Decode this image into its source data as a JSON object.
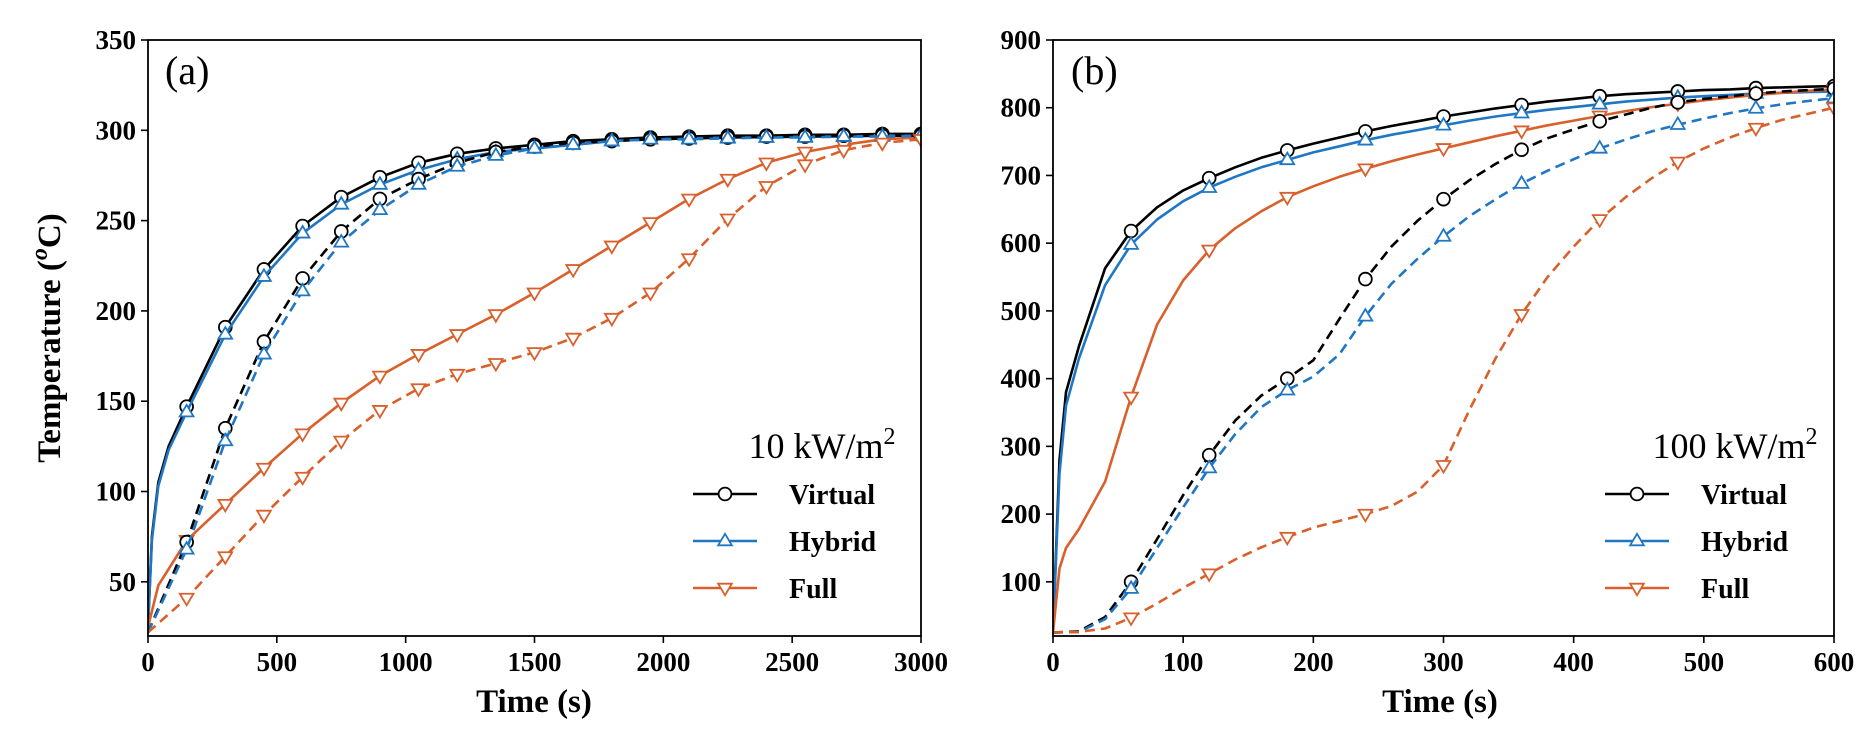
{
  "figure": {
    "ylabel": "Temperature (",
    "ylabel_sup": "o",
    "ylabel_end": "C)"
  },
  "chart_data": [
    {
      "type": "line",
      "panel": "(a)",
      "xlabel": "Time (s)",
      "ylabel": "Temperature (oC)",
      "xlim": [
        0,
        3000
      ],
      "ylim": [
        20,
        350
      ],
      "xticks": [
        0,
        500,
        1000,
        1500,
        2000,
        2500,
        3000
      ],
      "yticks": [
        50,
        100,
        150,
        200,
        250,
        300,
        350
      ],
      "legend_title": "10 kW/m",
      "legend_title_sup": "2",
      "legend_position": "lower-right",
      "grid": false,
      "series": [
        {
          "name": "Virtual",
          "color": "#000000",
          "marker": "circle",
          "dash": false,
          "x": [
            0,
            15,
            40,
            80,
            150,
            300,
            450,
            600,
            750,
            900,
            1050,
            1200,
            1350,
            1500,
            1650,
            1800,
            1950,
            2100,
            2250,
            2400,
            2550,
            2700,
            2850,
            3000
          ],
          "y": [
            25,
            75,
            105,
            125,
            147,
            191,
            223,
            247,
            263,
            274,
            282,
            287,
            290,
            292,
            294,
            295,
            296,
            296.5,
            297,
            297,
            297.5,
            297.5,
            298,
            298
          ]
        },
        {
          "name": "Hybrid",
          "color": "#1f77c4",
          "marker": "triangle-up",
          "dash": false,
          "x": [
            0,
            15,
            40,
            80,
            150,
            300,
            450,
            600,
            750,
            900,
            1050,
            1200,
            1350,
            1500,
            1650,
            1800,
            1950,
            2100,
            2250,
            2400,
            2550,
            2700,
            2850,
            3000
          ],
          "y": [
            25,
            73,
            103,
            123,
            144,
            187,
            219,
            243,
            259,
            270,
            278,
            284,
            288,
            290,
            292,
            294,
            295,
            295.5,
            296,
            296,
            296.5,
            296.5,
            297,
            297
          ]
        },
        {
          "name": "Full",
          "color": "#d95f2b",
          "marker": "triangle-down",
          "dash": false,
          "x": [
            0,
            40,
            150,
            300,
            450,
            600,
            750,
            900,
            1050,
            1200,
            1350,
            1500,
            1650,
            1800,
            1950,
            2100,
            2250,
            2400,
            2550,
            2700,
            2850,
            3000
          ],
          "y": [
            25,
            48,
            73,
            93,
            113,
            132,
            149,
            164,
            176,
            187,
            198,
            210,
            223,
            236,
            249,
            262,
            273,
            282,
            288,
            292,
            295,
            296
          ]
        },
        {
          "name": "Virtual",
          "color": "#000000",
          "marker": "circle",
          "dash": true,
          "x": [
            0,
            150,
            300,
            450,
            600,
            750,
            900,
            1050,
            1200,
            1350,
            1500,
            1650,
            1800,
            1950,
            2100,
            2250,
            2400,
            2550,
            2700,
            2850,
            3000
          ],
          "y": [
            22,
            72,
            135,
            183,
            218,
            244,
            262,
            273,
            282,
            288,
            291,
            293,
            294,
            295,
            295.5,
            296,
            296.5,
            296.5,
            297,
            297,
            297
          ]
        },
        {
          "name": "Hybrid",
          "color": "#1f77c4",
          "marker": "triangle-up",
          "dash": true,
          "x": [
            0,
            150,
            300,
            450,
            600,
            750,
            900,
            1050,
            1200,
            1350,
            1500,
            1650,
            1800,
            1950,
            2100,
            2250,
            2400,
            2550,
            2700,
            2850,
            3000
          ],
          "y": [
            22,
            68,
            128,
            176,
            211,
            238,
            256,
            270,
            280,
            286,
            290,
            292,
            294,
            295,
            295,
            295.5,
            296,
            296,
            296.5,
            296.5,
            297
          ]
        },
        {
          "name": "Full",
          "color": "#d95f2b",
          "marker": "triangle-down",
          "dash": true,
          "x": [
            0,
            150,
            300,
            450,
            600,
            750,
            900,
            1050,
            1200,
            1350,
            1500,
            1650,
            1800,
            1950,
            2100,
            2250,
            2400,
            2550,
            2700,
            2850,
            3000
          ],
          "y": [
            22,
            41,
            64,
            87,
            108,
            128,
            145,
            157,
            165,
            171,
            177,
            185,
            196,
            210,
            229,
            251,
            269,
            281,
            289,
            293,
            295
          ]
        }
      ]
    },
    {
      "type": "line",
      "panel": "(b)",
      "xlabel": "Time (s)",
      "xlim": [
        0,
        600
      ],
      "ylim": [
        20,
        900
      ],
      "xticks": [
        0,
        100,
        200,
        300,
        400,
        500,
        600
      ],
      "yticks": [
        100,
        200,
        300,
        400,
        500,
        600,
        700,
        800,
        900
      ],
      "legend_title": "100 kW/m",
      "legend_title_sup": "2",
      "legend_position": "lower-right",
      "grid": false,
      "series": [
        {
          "name": "Virtual",
          "color": "#000000",
          "marker": "circle",
          "dash": false,
          "x": [
            0,
            5,
            10,
            20,
            40,
            60,
            80,
            100,
            120,
            140,
            160,
            180,
            200,
            220,
            240,
            260,
            280,
            300,
            320,
            340,
            360,
            380,
            400,
            420,
            440,
            460,
            480,
            500,
            520,
            540,
            560,
            580,
            600
          ],
          "y": [
            25,
            280,
            380,
            448,
            563,
            618,
            653,
            678,
            696,
            712,
            726,
            737,
            747,
            756,
            765,
            773,
            780,
            787,
            793,
            799,
            804,
            809,
            813,
            817,
            820,
            822,
            824,
            826,
            827,
            829,
            830,
            831,
            832
          ]
        },
        {
          "name": "Hybrid",
          "color": "#1f77c4",
          "marker": "triangle-up",
          "dash": false,
          "x": [
            0,
            5,
            10,
            20,
            40,
            60,
            80,
            100,
            120,
            140,
            160,
            180,
            200,
            220,
            240,
            260,
            280,
            300,
            320,
            340,
            360,
            380,
            400,
            420,
            440,
            460,
            480,
            500,
            520,
            540,
            560,
            580,
            600
          ],
          "y": [
            25,
            260,
            360,
            430,
            538,
            598,
            635,
            662,
            682,
            698,
            712,
            723,
            734,
            743,
            752,
            760,
            767,
            774,
            781,
            787,
            792,
            797,
            801,
            805,
            809,
            812,
            815,
            817,
            819,
            821,
            822,
            823,
            824
          ]
        },
        {
          "name": "Full",
          "color": "#d95f2b",
          "marker": "triangle-down",
          "dash": false,
          "x": [
            0,
            5,
            10,
            20,
            40,
            60,
            80,
            100,
            120,
            140,
            160,
            180,
            200,
            220,
            240,
            260,
            280,
            300,
            320,
            340,
            360,
            380,
            400,
            420,
            440,
            460,
            480,
            500,
            520,
            540,
            560,
            580,
            600
          ],
          "y": [
            25,
            120,
            150,
            178,
            248,
            373,
            480,
            545,
            590,
            622,
            647,
            668,
            684,
            698,
            710,
            721,
            731,
            740,
            749,
            758,
            766,
            774,
            781,
            788,
            795,
            801,
            806,
            811,
            815,
            819,
            822,
            825,
            827
          ]
        },
        {
          "name": "Virtual",
          "color": "#000000",
          "marker": "circle",
          "dash": true,
          "x": [
            0,
            20,
            40,
            60,
            80,
            100,
            120,
            140,
            160,
            180,
            200,
            220,
            240,
            260,
            280,
            300,
            320,
            340,
            360,
            380,
            400,
            420,
            440,
            460,
            480,
            500,
            520,
            540,
            560,
            580,
            600
          ],
          "y": [
            25,
            27,
            48,
            100,
            163,
            228,
            287,
            338,
            375,
            400,
            427,
            488,
            547,
            595,
            633,
            665,
            693,
            717,
            738,
            755,
            768,
            780,
            790,
            800,
            808,
            813,
            817,
            821,
            824,
            826,
            828
          ]
        },
        {
          "name": "Hybrid",
          "color": "#1f77c4",
          "marker": "triangle-up",
          "dash": true,
          "x": [
            0,
            20,
            40,
            60,
            80,
            100,
            120,
            140,
            160,
            180,
            200,
            220,
            240,
            260,
            280,
            300,
            320,
            340,
            360,
            380,
            400,
            420,
            440,
            460,
            480,
            500,
            520,
            540,
            560,
            580,
            600
          ],
          "y": [
            25,
            26,
            45,
            90,
            150,
            210,
            268,
            318,
            358,
            383,
            403,
            436,
            492,
            540,
            577,
            610,
            640,
            665,
            688,
            707,
            724,
            740,
            753,
            765,
            775,
            784,
            792,
            799,
            805,
            810,
            814
          ]
        },
        {
          "name": "Full",
          "color": "#d95f2b",
          "marker": "triangle-down",
          "dash": true,
          "x": [
            0,
            20,
            40,
            60,
            80,
            100,
            120,
            140,
            160,
            180,
            200,
            220,
            240,
            260,
            280,
            300,
            320,
            340,
            360,
            380,
            400,
            420,
            440,
            460,
            480,
            500,
            520,
            540,
            560,
            580,
            600
          ],
          "y": [
            25,
            26,
            31,
            47,
            68,
            91,
            112,
            133,
            151,
            166,
            180,
            190,
            200,
            212,
            233,
            272,
            354,
            430,
            495,
            550,
            595,
            635,
            668,
            696,
            720,
            740,
            756,
            770,
            782,
            791,
            800
          ]
        }
      ]
    }
  ]
}
